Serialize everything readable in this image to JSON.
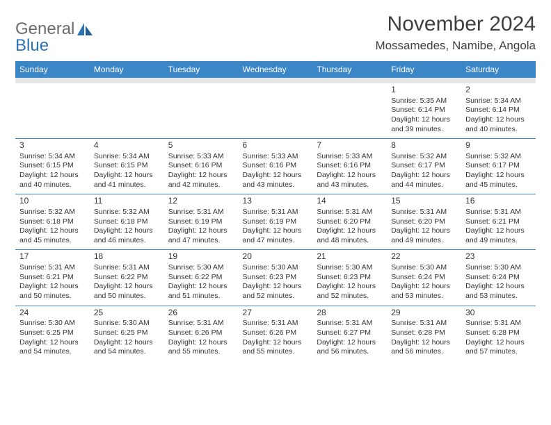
{
  "logo": {
    "general": "General",
    "blue": "Blue"
  },
  "title": "November 2024",
  "location": "Mossamedes, Namibe, Angola",
  "colors": {
    "header_bg": "#3b86c6",
    "header_text": "#ffffff",
    "spacer_bg": "#e6e6e6",
    "text": "#333333",
    "rule": "#3b86c6"
  },
  "weekdays": [
    "Sunday",
    "Monday",
    "Tuesday",
    "Wednesday",
    "Thursday",
    "Friday",
    "Saturday"
  ],
  "weeks": [
    [
      null,
      null,
      null,
      null,
      null,
      {
        "n": "1",
        "sr": "Sunrise: 5:35 AM",
        "ss": "Sunset: 6:14 PM",
        "d1": "Daylight: 12 hours",
        "d2": "and 39 minutes."
      },
      {
        "n": "2",
        "sr": "Sunrise: 5:34 AM",
        "ss": "Sunset: 6:14 PM",
        "d1": "Daylight: 12 hours",
        "d2": "and 40 minutes."
      }
    ],
    [
      {
        "n": "3",
        "sr": "Sunrise: 5:34 AM",
        "ss": "Sunset: 6:15 PM",
        "d1": "Daylight: 12 hours",
        "d2": "and 40 minutes."
      },
      {
        "n": "4",
        "sr": "Sunrise: 5:34 AM",
        "ss": "Sunset: 6:15 PM",
        "d1": "Daylight: 12 hours",
        "d2": "and 41 minutes."
      },
      {
        "n": "5",
        "sr": "Sunrise: 5:33 AM",
        "ss": "Sunset: 6:16 PM",
        "d1": "Daylight: 12 hours",
        "d2": "and 42 minutes."
      },
      {
        "n": "6",
        "sr": "Sunrise: 5:33 AM",
        "ss": "Sunset: 6:16 PM",
        "d1": "Daylight: 12 hours",
        "d2": "and 43 minutes."
      },
      {
        "n": "7",
        "sr": "Sunrise: 5:33 AM",
        "ss": "Sunset: 6:16 PM",
        "d1": "Daylight: 12 hours",
        "d2": "and 43 minutes."
      },
      {
        "n": "8",
        "sr": "Sunrise: 5:32 AM",
        "ss": "Sunset: 6:17 PM",
        "d1": "Daylight: 12 hours",
        "d2": "and 44 minutes."
      },
      {
        "n": "9",
        "sr": "Sunrise: 5:32 AM",
        "ss": "Sunset: 6:17 PM",
        "d1": "Daylight: 12 hours",
        "d2": "and 45 minutes."
      }
    ],
    [
      {
        "n": "10",
        "sr": "Sunrise: 5:32 AM",
        "ss": "Sunset: 6:18 PM",
        "d1": "Daylight: 12 hours",
        "d2": "and 45 minutes."
      },
      {
        "n": "11",
        "sr": "Sunrise: 5:32 AM",
        "ss": "Sunset: 6:18 PM",
        "d1": "Daylight: 12 hours",
        "d2": "and 46 minutes."
      },
      {
        "n": "12",
        "sr": "Sunrise: 5:31 AM",
        "ss": "Sunset: 6:19 PM",
        "d1": "Daylight: 12 hours",
        "d2": "and 47 minutes."
      },
      {
        "n": "13",
        "sr": "Sunrise: 5:31 AM",
        "ss": "Sunset: 6:19 PM",
        "d1": "Daylight: 12 hours",
        "d2": "and 47 minutes."
      },
      {
        "n": "14",
        "sr": "Sunrise: 5:31 AM",
        "ss": "Sunset: 6:20 PM",
        "d1": "Daylight: 12 hours",
        "d2": "and 48 minutes."
      },
      {
        "n": "15",
        "sr": "Sunrise: 5:31 AM",
        "ss": "Sunset: 6:20 PM",
        "d1": "Daylight: 12 hours",
        "d2": "and 49 minutes."
      },
      {
        "n": "16",
        "sr": "Sunrise: 5:31 AM",
        "ss": "Sunset: 6:21 PM",
        "d1": "Daylight: 12 hours",
        "d2": "and 49 minutes."
      }
    ],
    [
      {
        "n": "17",
        "sr": "Sunrise: 5:31 AM",
        "ss": "Sunset: 6:21 PM",
        "d1": "Daylight: 12 hours",
        "d2": "and 50 minutes."
      },
      {
        "n": "18",
        "sr": "Sunrise: 5:31 AM",
        "ss": "Sunset: 6:22 PM",
        "d1": "Daylight: 12 hours",
        "d2": "and 50 minutes."
      },
      {
        "n": "19",
        "sr": "Sunrise: 5:30 AM",
        "ss": "Sunset: 6:22 PM",
        "d1": "Daylight: 12 hours",
        "d2": "and 51 minutes."
      },
      {
        "n": "20",
        "sr": "Sunrise: 5:30 AM",
        "ss": "Sunset: 6:23 PM",
        "d1": "Daylight: 12 hours",
        "d2": "and 52 minutes."
      },
      {
        "n": "21",
        "sr": "Sunrise: 5:30 AM",
        "ss": "Sunset: 6:23 PM",
        "d1": "Daylight: 12 hours",
        "d2": "and 52 minutes."
      },
      {
        "n": "22",
        "sr": "Sunrise: 5:30 AM",
        "ss": "Sunset: 6:24 PM",
        "d1": "Daylight: 12 hours",
        "d2": "and 53 minutes."
      },
      {
        "n": "23",
        "sr": "Sunrise: 5:30 AM",
        "ss": "Sunset: 6:24 PM",
        "d1": "Daylight: 12 hours",
        "d2": "and 53 minutes."
      }
    ],
    [
      {
        "n": "24",
        "sr": "Sunrise: 5:30 AM",
        "ss": "Sunset: 6:25 PM",
        "d1": "Daylight: 12 hours",
        "d2": "and 54 minutes."
      },
      {
        "n": "25",
        "sr": "Sunrise: 5:30 AM",
        "ss": "Sunset: 6:25 PM",
        "d1": "Daylight: 12 hours",
        "d2": "and 54 minutes."
      },
      {
        "n": "26",
        "sr": "Sunrise: 5:31 AM",
        "ss": "Sunset: 6:26 PM",
        "d1": "Daylight: 12 hours",
        "d2": "and 55 minutes."
      },
      {
        "n": "27",
        "sr": "Sunrise: 5:31 AM",
        "ss": "Sunset: 6:26 PM",
        "d1": "Daylight: 12 hours",
        "d2": "and 55 minutes."
      },
      {
        "n": "28",
        "sr": "Sunrise: 5:31 AM",
        "ss": "Sunset: 6:27 PM",
        "d1": "Daylight: 12 hours",
        "d2": "and 56 minutes."
      },
      {
        "n": "29",
        "sr": "Sunrise: 5:31 AM",
        "ss": "Sunset: 6:28 PM",
        "d1": "Daylight: 12 hours",
        "d2": "and 56 minutes."
      },
      {
        "n": "30",
        "sr": "Sunrise: 5:31 AM",
        "ss": "Sunset: 6:28 PM",
        "d1": "Daylight: 12 hours",
        "d2": "and 57 minutes."
      }
    ]
  ]
}
